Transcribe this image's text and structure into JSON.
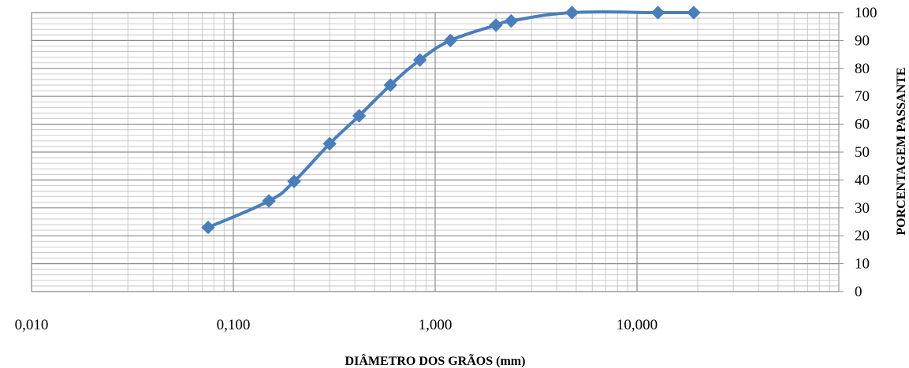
{
  "chart_data": {
    "type": "line",
    "title": "",
    "xlabel": "DIÂMETRO DOS GRÃOS (mm)",
    "ylabel": "PORCENTAGEM PASSANTE",
    "x_scale": "log",
    "xlim": [
      0.01,
      100
    ],
    "ylim": [
      0,
      100
    ],
    "x_tick_labels": [
      "0,010",
      "0,100",
      "1,000",
      "10,000"
    ],
    "y_tick_labels": [
      "0",
      "10",
      "20",
      "30",
      "40",
      "50",
      "60",
      "70",
      "80",
      "90",
      "100"
    ],
    "y_axis_side": "right",
    "grid": true,
    "legend": "none",
    "series_color": "#4a7ebb",
    "series": [
      {
        "x": [
          0.075,
          0.15,
          0.2,
          0.3,
          0.42,
          0.6,
          0.84,
          1.19,
          2.0,
          2.38,
          4.76,
          12.7,
          19.1
        ],
        "y": [
          23,
          32.5,
          39.5,
          53,
          63,
          74,
          83,
          90,
          95.5,
          97,
          100,
          100,
          100
        ]
      }
    ]
  }
}
